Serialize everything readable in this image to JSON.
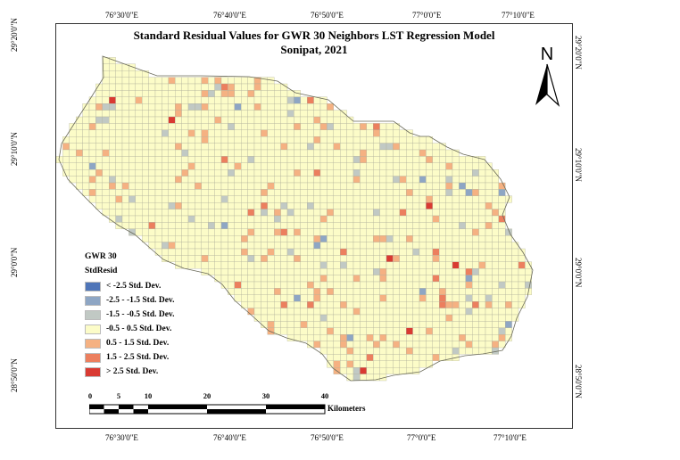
{
  "title": {
    "line1": "Standard Residual Values for GWR 30 Neighbors LST Regression Model",
    "line2": "Sonipat, 2021"
  },
  "coords": {
    "top": [
      "76°30'0\"E",
      "76°40'0\"E",
      "76°50'0\"E",
      "77°0'0\"E",
      "77°10'0\"E"
    ],
    "bottom": [
      "76°30'0\"E",
      "76°40'0\"E",
      "76°50'0\"E",
      "77°0'0\"E",
      "77°10'0\"E"
    ],
    "left": [
      "29°20'0\"N",
      "29°10'0\"N",
      "29°0'0\"N",
      "28°50'0\"N"
    ],
    "right": [
      "29°20'0\"N",
      "29°10'0\"N",
      "29°0'0\"N",
      "28°50'0\"N"
    ]
  },
  "north_label": "N",
  "legend": {
    "title": "GWR 30",
    "subtitle": "StdResid",
    "items": [
      {
        "label": "< -2.5 Std. Dev.",
        "color": "#4f75b8"
      },
      {
        "label": "-2.5 - -1.5 Std. Dev.",
        "color": "#8ea6c4"
      },
      {
        "label": "-1.5 - -0.5 Std. Dev.",
        "color": "#c1c9c4"
      },
      {
        "label": "-0.5 - 0.5 Std. Dev.",
        "color": "#fcfcc8"
      },
      {
        "label": "0.5 - 1.5 Std. Dev.",
        "color": "#f5b182"
      },
      {
        "label": "1.5 - 2.5 Std. Dev.",
        "color": "#ec7f5e"
      },
      {
        "label": "> 2.5 Std. Dev.",
        "color": "#d93a32"
      }
    ]
  },
  "scalebar": {
    "ticks": [
      "0",
      "5",
      "10",
      "20",
      "30",
      "40"
    ],
    "unit": "Kilometers"
  }
}
